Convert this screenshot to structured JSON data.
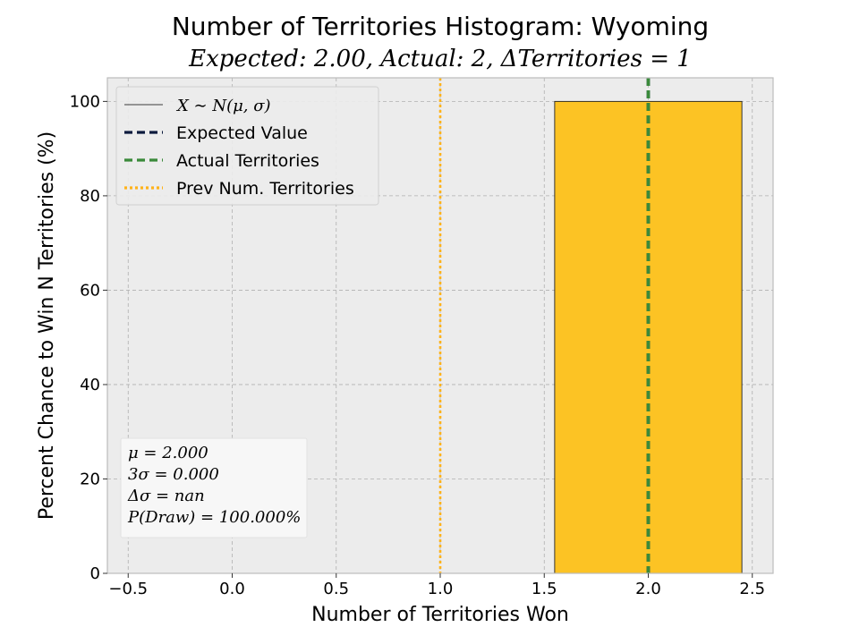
{
  "chart_data": {
    "type": "bar",
    "title": "Number of Territories Histogram: Wyoming",
    "subtitle": "Expected: 2.00, Actual: 2, ΔTerritories = 1",
    "xlabel": "Number of Territories Won",
    "ylabel": "Percent Chance to Win N Territories (%)",
    "xlim": [
      -0.6,
      2.6
    ],
    "ylim": [
      0,
      105
    ],
    "xticks": [
      -0.5,
      0.0,
      0.5,
      1.0,
      1.5,
      2.0,
      2.5
    ],
    "xtick_labels": [
      "−0.5",
      "0.0",
      "0.5",
      "1.0",
      "1.5",
      "2.0",
      "2.5"
    ],
    "yticks": [
      0,
      20,
      40,
      60,
      80,
      100
    ],
    "ytick_labels": [
      "0",
      "20",
      "40",
      "60",
      "80",
      "100"
    ],
    "grid": true,
    "bars": [
      {
        "x_start": 1.55,
        "x_end": 2.45,
        "value": 100,
        "color": "#fcc324"
      }
    ],
    "vlines": [
      {
        "name": "Expected Value",
        "x": 2.0,
        "color": "#0d1b3e",
        "style": "dashed"
      },
      {
        "name": "Actual Territories",
        "x": 2.0,
        "color": "#3a8a3a",
        "style": "dashed"
      },
      {
        "name": "Prev Num. Territories",
        "x": 1.0,
        "color": "#ffb31a",
        "style": "dotted"
      }
    ],
    "legend": {
      "placement": "top-left",
      "entries": [
        {
          "label": "X ∼ N(μ, σ)",
          "color": "#000000",
          "style": "solid",
          "math": true
        },
        {
          "label": "Expected Value",
          "color": "#0d1b3e",
          "style": "dashed",
          "math": false
        },
        {
          "label": "Actual Territories",
          "color": "#3a8a3a",
          "style": "dashed",
          "math": false
        },
        {
          "label": "Prev Num. Territories",
          "color": "#ffb31a",
          "style": "dotted",
          "math": false
        }
      ]
    },
    "stats_box": {
      "placement": "bottom-left",
      "lines": [
        "μ = 2.000",
        "3σ = 0.000",
        "Δσ = nan",
        "P(Draw) = 100.000%"
      ]
    },
    "colors": {
      "plot_background": "#ececec",
      "grid": "#b0b0b0",
      "bar": "#fcc324"
    }
  }
}
